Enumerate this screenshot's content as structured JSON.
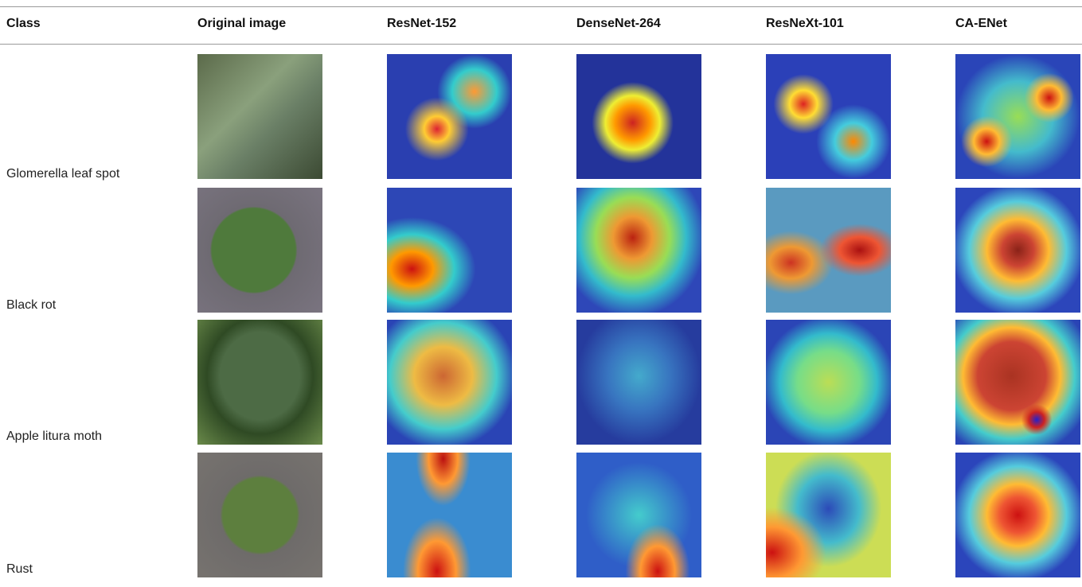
{
  "table": {
    "header": [
      "Class",
      "Original image",
      "ResNet-152",
      "DenseNet-264",
      "ResNeXt-101",
      "CA-ENet"
    ],
    "rows": [
      [
        "Glomerella leaf spot"
      ],
      [
        "Black rot"
      ],
      [
        "Apple litura moth"
      ],
      [
        "Rust"
      ]
    ]
  }
}
